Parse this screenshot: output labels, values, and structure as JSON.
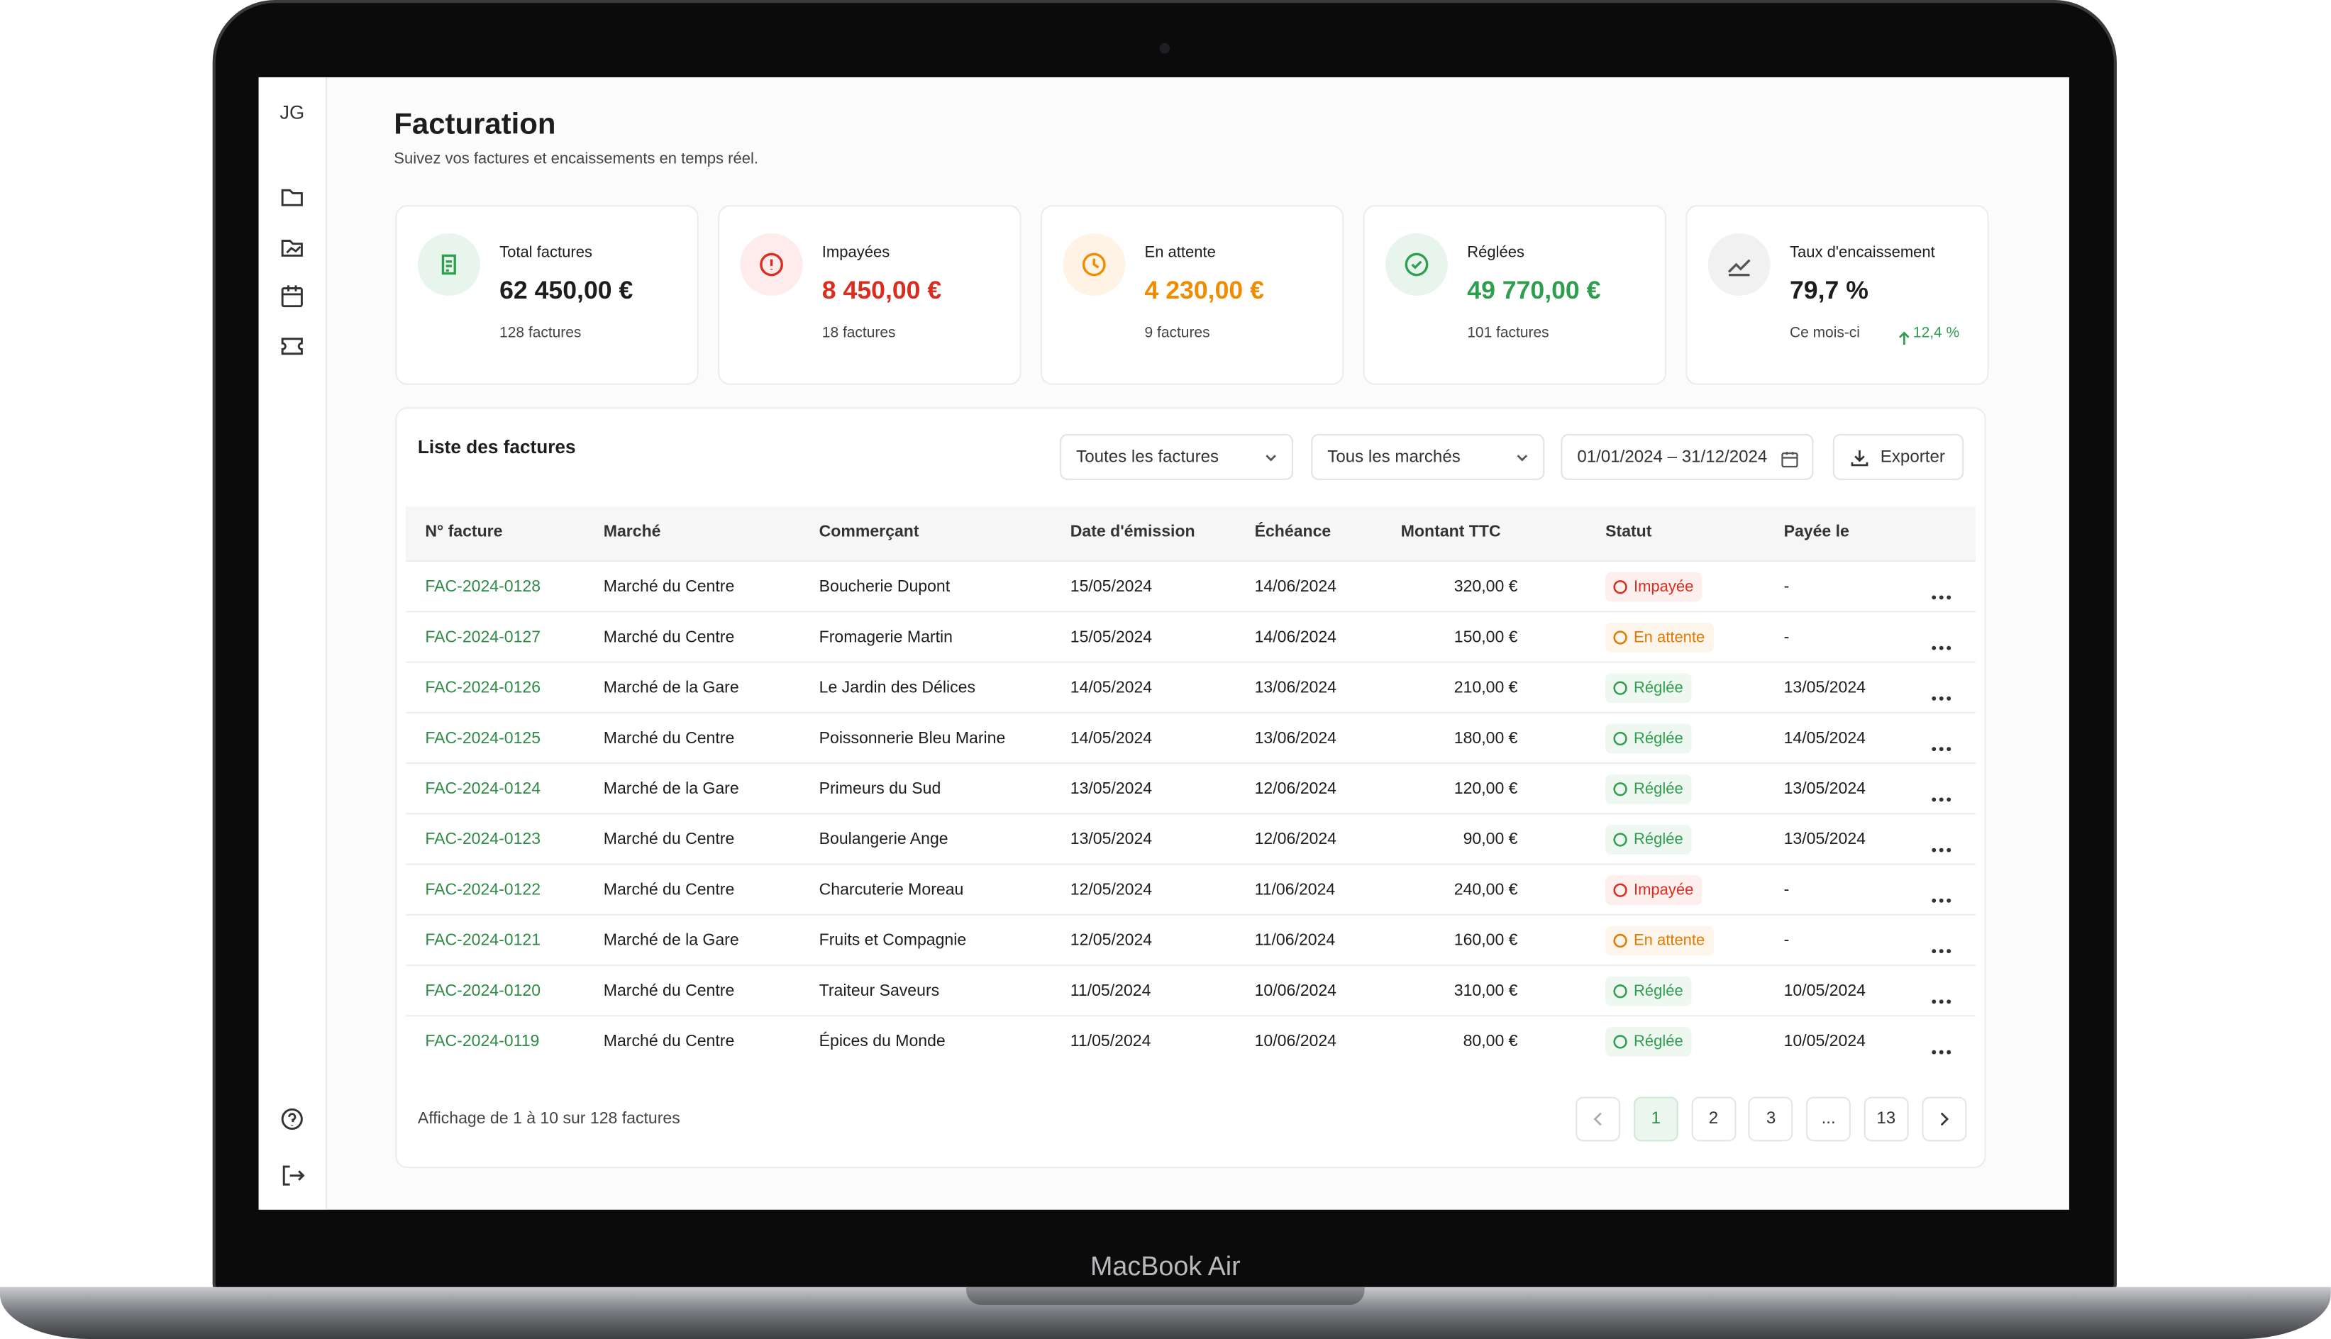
{
  "device_label": "MacBook Air",
  "sidebar": {
    "avatar": "JG"
  },
  "header": {
    "title": "Facturation",
    "subtitle": "Suivez vos factures et encaissements en temps réel."
  },
  "kpis": [
    {
      "label": "Total factures",
      "value": "62 450,00 €",
      "sub": "128 factures",
      "color": "#1d1d1f",
      "icon_color": "#2e9e4f",
      "icon_bg": "#e8f5ec"
    },
    {
      "label": "Impayées",
      "value": "8 450,00 €",
      "sub": "18 factures",
      "color": "#d92d20",
      "icon_color": "#d92d20",
      "icon_bg": "#fdeceb"
    },
    {
      "label": "En attente",
      "value": "4 230,00 €",
      "sub": "9 factures",
      "color": "#f08c00",
      "icon_color": "#f08c00",
      "icon_bg": "#fef3e4"
    },
    {
      "label": "Réglées",
      "value": "49 770,00 €",
      "sub": "101 factures",
      "color": "#2e9e4f",
      "icon_color": "#2e9e4f",
      "icon_bg": "#e8f5ec"
    },
    {
      "label": "Taux d'encaissement",
      "value": "79,7 %",
      "sub": "Ce mois-ci",
      "trend": "12,4 %",
      "color": "#1d1d1f",
      "icon_color": "#555",
      "icon_bg": "#f1f1f1"
    }
  ],
  "table": {
    "title": "Liste des factures",
    "filters": [
      "Toutes les factures",
      "Tous les marchés",
      "01/01/2024 – 31/12/2024"
    ],
    "export": "Exporter",
    "columns": [
      "N° facture",
      "Marché",
      "Commerçant",
      "Date d'émission",
      "Échéance",
      "Montant TTC",
      "Statut",
      "Payée le"
    ],
    "rows": [
      [
        "FAC-2024-0128",
        "Marché du Centre",
        "Boucherie Dupont",
        "15/05/2024",
        "14/06/2024",
        "320,00 €",
        "Impayée",
        "-"
      ],
      [
        "FAC-2024-0127",
        "Marché du Centre",
        "Fromagerie Martin",
        "15/05/2024",
        "14/06/2024",
        "150,00 €",
        "En attente",
        "-"
      ],
      [
        "FAC-2024-0126",
        "Marché de la Gare",
        "Le Jardin des Délices",
        "14/05/2024",
        "13/06/2024",
        "210,00 €",
        "Réglée",
        "13/05/2024"
      ],
      [
        "FAC-2024-0125",
        "Marché du Centre",
        "Poissonnerie Bleu Marine",
        "14/05/2024",
        "13/06/2024",
        "180,00 €",
        "Réglée",
        "14/05/2024"
      ],
      [
        "FAC-2024-0124",
        "Marché de la Gare",
        "Primeurs du Sud",
        "13/05/2024",
        "12/06/2024",
        "120,00 €",
        "Réglée",
        "13/05/2024"
      ],
      [
        "FAC-2024-0123",
        "Marché du Centre",
        "Boulangerie Ange",
        "13/05/2024",
        "12/06/2024",
        "90,00 €",
        "Réglée",
        "13/05/2024"
      ],
      [
        "FAC-2024-0122",
        "Marché du Centre",
        "Charcuterie Moreau",
        "12/05/2024",
        "11/06/2024",
        "240,00 €",
        "Impayée",
        "-"
      ],
      [
        "FAC-2024-0121",
        "Marché de la Gare",
        "Fruits et Compagnie",
        "12/05/2024",
        "11/06/2024",
        "160,00 €",
        "En attente",
        "-"
      ],
      [
        "FAC-2024-0120",
        "Marché du Centre",
        "Traiteur Saveurs",
        "11/05/2024",
        "10/06/2024",
        "310,00 €",
        "Réglée",
        "10/05/2024"
      ],
      [
        "FAC-2024-0119",
        "Marché du Centre",
        "Épices du Monde",
        "11/05/2024",
        "10/06/2024",
        "80,00 €",
        "Réglée",
        "10/05/2024"
      ]
    ],
    "status_colors": [
      "#d92d20",
      "#e07a00",
      "#2e9e4f",
      "#2e9e4f",
      "#2e9e4f",
      "#2e9e4f",
      "#d92d20",
      "#e07a00",
      "#2e9e4f",
      "#2e9e4f"
    ],
    "footer": "Affichage de 1 à 10 sur 128 factures",
    "pages": [
      "1",
      "2",
      "3",
      "...",
      "13"
    ]
  }
}
